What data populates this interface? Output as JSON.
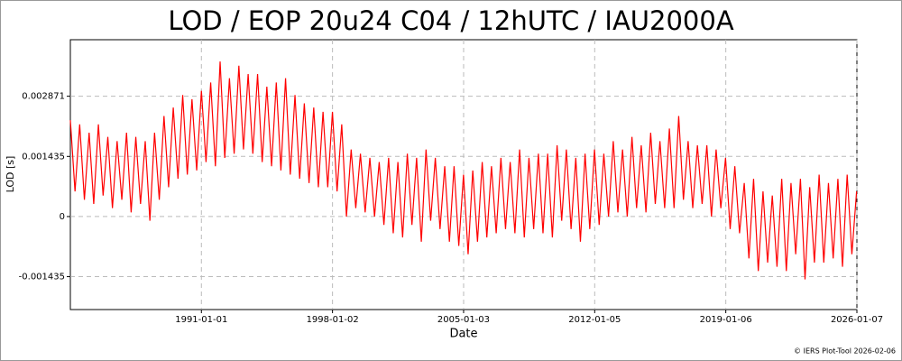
{
  "chart_data": {
    "type": "line",
    "title": "LOD / EOP 20u24 C04 / 12hUTC / IAU2000A",
    "x_label": "Date",
    "y_label": "LOD [s]",
    "footer": "© IERS Plot-Tool 2026-02-06",
    "grid": true,
    "xlim": [
      "1984-01-01",
      "2026-01-07"
    ],
    "xticks": [
      "1991-01-01",
      "1998-01-02",
      "2005-01-03",
      "2012-01-05",
      "2019-01-06",
      "2026-01-07"
    ],
    "ylim": [
      -0.00222,
      0.00422
    ],
    "yticks": [
      -0.001435,
      0,
      0.001435,
      0.002871
    ],
    "x": [
      "1984-01-01",
      "1984-04-01",
      "1984-07-01",
      "1984-10-01",
      "1985-01-01",
      "1985-04-01",
      "1985-07-01",
      "1985-10-01",
      "1986-01-01",
      "1986-04-01",
      "1986-07-01",
      "1986-10-01",
      "1987-01-01",
      "1987-04-01",
      "1987-07-01",
      "1987-10-01",
      "1988-01-01",
      "1988-04-01",
      "1988-07-01",
      "1988-10-01",
      "1989-01-01",
      "1989-04-01",
      "1989-07-01",
      "1989-10-01",
      "1990-01-01",
      "1990-04-01",
      "1990-07-01",
      "1990-10-01",
      "1991-01-01",
      "1991-04-01",
      "1991-07-01",
      "1991-10-01",
      "1992-01-01",
      "1992-04-01",
      "1992-07-01",
      "1992-10-01",
      "1993-01-01",
      "1993-04-01",
      "1993-07-01",
      "1993-10-01",
      "1994-01-01",
      "1994-04-01",
      "1994-07-01",
      "1994-10-01",
      "1995-01-01",
      "1995-04-01",
      "1995-07-01",
      "1995-10-01",
      "1996-01-01",
      "1996-04-01",
      "1996-07-01",
      "1996-10-01",
      "1997-01-01",
      "1997-04-01",
      "1997-07-01",
      "1997-10-01",
      "1998-01-01",
      "1998-04-01",
      "1998-07-01",
      "1998-10-01",
      "1999-01-01",
      "1999-04-01",
      "1999-07-01",
      "1999-10-01",
      "2000-01-01",
      "2000-04-01",
      "2000-07-01",
      "2000-10-01",
      "2001-01-01",
      "2001-04-01",
      "2001-07-01",
      "2001-10-01",
      "2002-01-01",
      "2002-04-01",
      "2002-07-01",
      "2002-10-01",
      "2003-01-01",
      "2003-04-01",
      "2003-07-01",
      "2003-10-01",
      "2004-01-01",
      "2004-04-01",
      "2004-07-01",
      "2004-10-01",
      "2005-01-01",
      "2005-04-01",
      "2005-07-01",
      "2005-10-01",
      "2006-01-01",
      "2006-04-01",
      "2006-07-01",
      "2006-10-01",
      "2007-01-01",
      "2007-04-01",
      "2007-07-01",
      "2007-10-01",
      "2008-01-01",
      "2008-04-01",
      "2008-07-01",
      "2008-10-01",
      "2009-01-01",
      "2009-04-01",
      "2009-07-01",
      "2009-10-01",
      "2010-01-01",
      "2010-04-01",
      "2010-07-01",
      "2010-10-01",
      "2011-01-01",
      "2011-04-01",
      "2011-07-01",
      "2011-10-01",
      "2012-01-01",
      "2012-04-01",
      "2012-07-01",
      "2012-10-01",
      "2013-01-01",
      "2013-04-01",
      "2013-07-01",
      "2013-10-01",
      "2014-01-01",
      "2014-04-01",
      "2014-07-01",
      "2014-10-01",
      "2015-01-01",
      "2015-04-01",
      "2015-07-01",
      "2015-10-01",
      "2016-01-01",
      "2016-04-01",
      "2016-07-01",
      "2016-10-01",
      "2017-01-01",
      "2017-04-01",
      "2017-07-01",
      "2017-10-01",
      "2018-01-01",
      "2018-04-01",
      "2018-07-01",
      "2018-10-01",
      "2019-01-01",
      "2019-04-01",
      "2019-07-01",
      "2019-10-01",
      "2020-01-01",
      "2020-04-01",
      "2020-07-01",
      "2020-10-01",
      "2021-01-01",
      "2021-04-01",
      "2021-07-01",
      "2021-10-01",
      "2022-01-01",
      "2022-04-01",
      "2022-07-01",
      "2022-10-01",
      "2023-01-01",
      "2023-04-01",
      "2023-07-01",
      "2023-10-01",
      "2024-01-01",
      "2024-04-01",
      "2024-07-01",
      "2024-10-01",
      "2025-01-01",
      "2025-04-01",
      "2025-07-01",
      "2025-10-01",
      "2026-01-01"
    ],
    "series": [
      {
        "name": "LOD",
        "color": "#ff0000",
        "values": [
          0.0023,
          0.0006,
          0.0022,
          0.0004,
          0.002,
          0.0003,
          0.0022,
          0.0005,
          0.0019,
          0.0002,
          0.0018,
          0.0004,
          0.002,
          0.0001,
          0.0019,
          0.0003,
          0.0018,
          -0.0001,
          0.002,
          0.0004,
          0.0024,
          0.0007,
          0.0026,
          0.0009,
          0.0029,
          0.001,
          0.0028,
          0.0011,
          0.003,
          0.0013,
          0.0032,
          0.0012,
          0.0037,
          0.0014,
          0.0033,
          0.0015,
          0.0036,
          0.0016,
          0.0034,
          0.0015,
          0.0034,
          0.0013,
          0.0031,
          0.0012,
          0.0032,
          0.0011,
          0.0033,
          0.001,
          0.0029,
          0.0009,
          0.0027,
          0.0008,
          0.0026,
          0.0007,
          0.0025,
          0.0007,
          0.0025,
          0.0006,
          0.0022,
          0,
          0.0016,
          0.0002,
          0.0015,
          0.0001,
          0.0014,
          0,
          0.0013,
          -0.0002,
          0.0014,
          -0.0004,
          0.0013,
          -0.0005,
          0.0015,
          -0.0002,
          0.0014,
          -0.0006,
          0.0016,
          -0.0001,
          0.0014,
          -0.0003,
          0.0012,
          -0.0006,
          0.0012,
          -0.0007,
          0.001,
          -0.0009,
          0.0011,
          -0.0006,
          0.0013,
          -0.0005,
          0.0012,
          -0.0004,
          0.0014,
          -0.0003,
          0.0013,
          -0.0004,
          0.0016,
          -0.0005,
          0.0014,
          -0.0003,
          0.0015,
          -0.0004,
          0.0015,
          -0.0005,
          0.0017,
          -0.0001,
          0.0016,
          -0.0003,
          0.0014,
          -0.0006,
          0.0015,
          -0.0003,
          0.0016,
          -0.0002,
          0.0015,
          0,
          0.0018,
          0.0001,
          0.0016,
          0,
          0.0019,
          0.0002,
          0.0017,
          0.0001,
          0.002,
          0.0003,
          0.0018,
          0.0002,
          0.0021,
          0.0002,
          0.0024,
          0.0004,
          0.0018,
          0.0002,
          0.0017,
          0.0003,
          0.0017,
          0,
          0.0016,
          0.0002,
          0.0014,
          -0.0003,
          0.0012,
          -0.0004,
          0.0008,
          -0.001,
          0.0009,
          -0.0013,
          0.0006,
          -0.0011,
          0.0005,
          -0.0012,
          0.0009,
          -0.0013,
          0.0008,
          -0.0009,
          0.0009,
          -0.0015,
          0.0007,
          -0.0011,
          0.001,
          -0.0011,
          0.0008,
          -0.001,
          0.0009,
          -0.0012,
          0.001,
          -0.0009,
          0.0006
        ]
      }
    ]
  }
}
